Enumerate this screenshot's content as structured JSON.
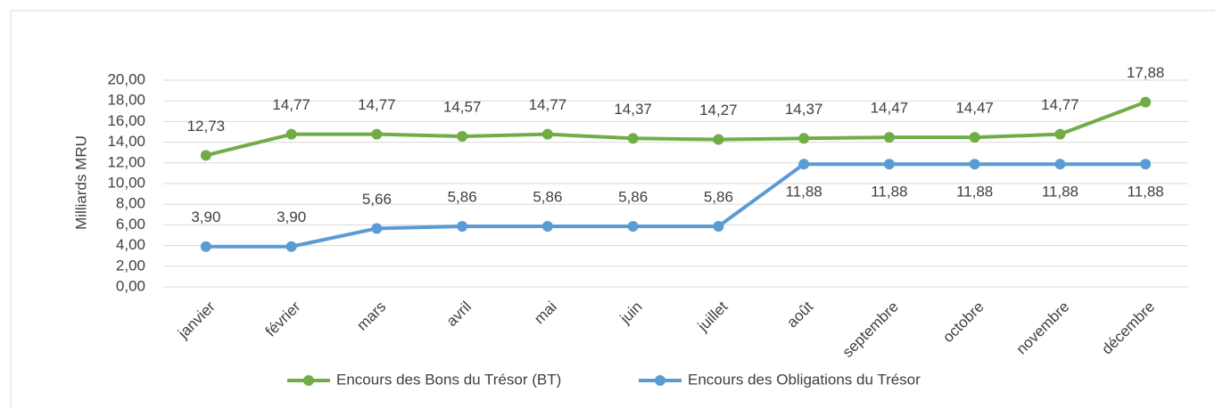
{
  "chart_data": {
    "type": "line",
    "y_label": "Milliards MRU",
    "categories": [
      "janvier",
      "février",
      "mars",
      "avril",
      "mai",
      "juin",
      "juillet",
      "août",
      "septembre",
      "octobre",
      "novembre",
      "décembre"
    ],
    "series": [
      {
        "name": "Encours des Bons du Trésor (BT)",
        "color": "#70ad47",
        "values": [
          12.73,
          14.77,
          14.77,
          14.57,
          14.77,
          14.37,
          14.27,
          14.37,
          14.47,
          14.47,
          14.77,
          17.88
        ],
        "value_labels": [
          "12,73",
          "14,77",
          "14,77",
          "14,57",
          "14,77",
          "14,37",
          "14,27",
          "14,37",
          "14,47",
          "14,47",
          "14,77",
          "17,88"
        ]
      },
      {
        "name": "Encours des Obligations du Trésor",
        "color": "#5b9bd5",
        "values": [
          3.9,
          3.9,
          5.66,
          5.86,
          5.86,
          5.86,
          5.86,
          11.88,
          11.88,
          11.88,
          11.88,
          11.88
        ],
        "value_labels": [
          "3,90",
          "3,90",
          "5,66",
          "5,86",
          "5,86",
          "5,86",
          "5,86",
          "11,88",
          "11,88",
          "11,88",
          "11,88",
          "11,88"
        ]
      }
    ],
    "ylim": [
      0,
      20
    ],
    "yticks": [
      {
        "value": 0,
        "label": "0,00"
      },
      {
        "value": 2,
        "label": "2,00"
      },
      {
        "value": 4,
        "label": "4,00"
      },
      {
        "value": 6,
        "label": "6,00"
      },
      {
        "value": 8,
        "label": "8,00"
      },
      {
        "value": 10,
        "label": "10,00"
      },
      {
        "value": 12,
        "label": "12,00"
      },
      {
        "value": 14,
        "label": "14,00"
      },
      {
        "value": 16,
        "label": "16,00"
      },
      {
        "value": 18,
        "label": "18,00"
      },
      {
        "value": 20,
        "label": "20,00"
      }
    ],
    "grid": true,
    "legend": "bottom"
  }
}
